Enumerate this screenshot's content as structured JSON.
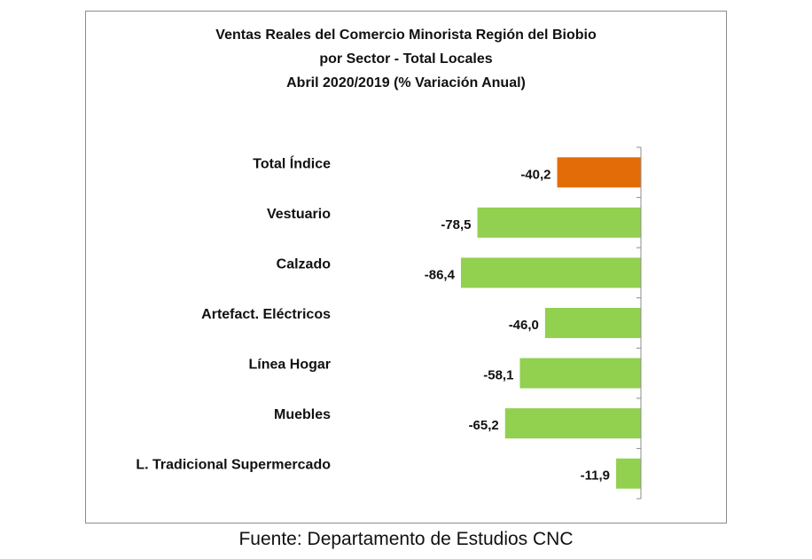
{
  "chart_data": {
    "type": "bar",
    "orientation": "horizontal",
    "title_lines": [
      "Ventas Reales del Comercio Minorista  Región del Biobio",
      "por Sector - Total Locales",
      "Abril 2020/2019 (% Variación Anual)"
    ],
    "categories": [
      "Total Índice",
      "Vestuario",
      "Calzado",
      "Artefact. Eléctricos",
      "Línea Hogar",
      "Muebles",
      "L. Tradicional Supermercado"
    ],
    "values": [
      -40.2,
      -78.5,
      -86.4,
      -46.0,
      -58.1,
      -65.2,
      -11.9
    ],
    "value_labels": [
      "-40,2",
      "-78,5",
      "-86,4",
      "-46,0",
      "-58,1",
      "-65,2",
      "-11,9"
    ],
    "colors": [
      "#e36c09",
      "#92d050",
      "#92d050",
      "#92d050",
      "#92d050",
      "#92d050",
      "#92d050"
    ],
    "grid": false,
    "legend": "none"
  },
  "source": "Fuente: Departamento de Estudios CNC"
}
